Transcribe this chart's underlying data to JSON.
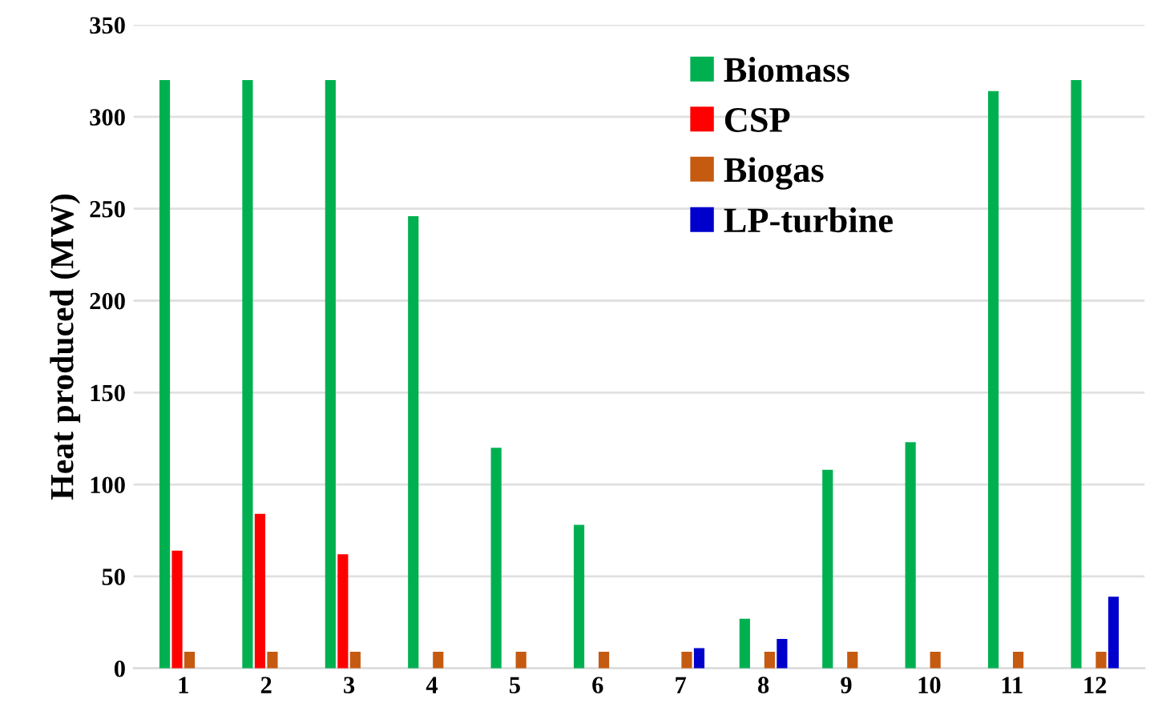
{
  "chart_data": {
    "type": "bar",
    "ylabel": "Heat produced (MW)",
    "categories": [
      "1",
      "2",
      "3",
      "4",
      "5",
      "6",
      "7",
      "8",
      "9",
      "10",
      "11",
      "12"
    ],
    "series": [
      {
        "name": "Biomass",
        "color": "#00b050",
        "values": [
          320,
          320,
          320,
          246,
          120,
          78,
          0,
          27,
          108,
          123,
          314,
          320
        ]
      },
      {
        "name": "CSP",
        "color": "#ff0000",
        "values": [
          64,
          84,
          62,
          0,
          0,
          0,
          0,
          0,
          0,
          0,
          0,
          0
        ]
      },
      {
        "name": "Biogas",
        "color": "#c55a11",
        "values": [
          9,
          9,
          9,
          9,
          9,
          9,
          9,
          9,
          9,
          9,
          9,
          9
        ]
      },
      {
        "name": "LP-turbine",
        "color": "#0000cc",
        "values": [
          0,
          0,
          0,
          0,
          0,
          0,
          11,
          16,
          0,
          0,
          0,
          39
        ]
      }
    ],
    "ylim": [
      0,
      350
    ],
    "yticks": [
      0,
      50,
      100,
      150,
      200,
      250,
      300,
      350
    ],
    "grid": "y",
    "legend": "top"
  }
}
